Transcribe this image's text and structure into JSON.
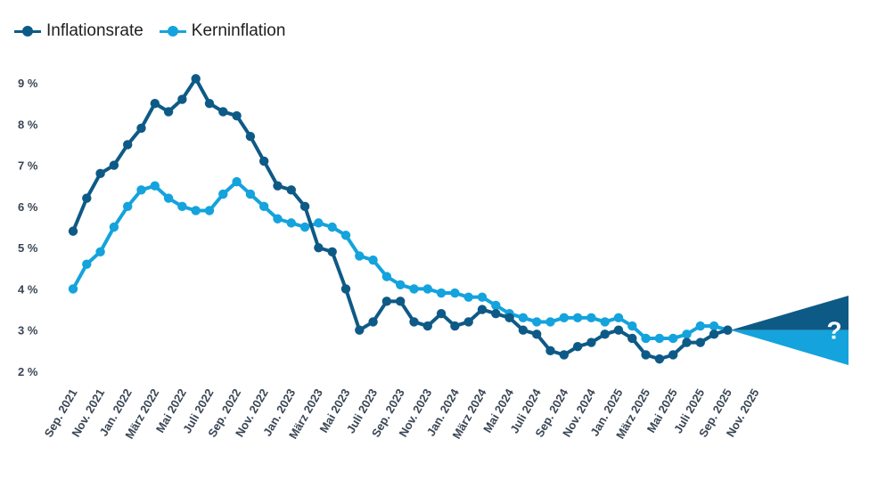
{
  "colors": {
    "inflation": "#0e5a86",
    "core": "#14a3dc",
    "tick_text": "#3a4654"
  },
  "legend": [
    {
      "label": "Inflationsrate",
      "color": "#0e5a86"
    },
    {
      "label": "Kerninflation",
      "color": "#14a3dc"
    }
  ],
  "chart_data": {
    "type": "line",
    "title": "",
    "xlabel": "",
    "ylabel": "",
    "ylim": [
      2,
      9
    ],
    "yticks": [
      {
        "value": 2,
        "label": "2 %"
      },
      {
        "value": 3,
        "label": "3 %"
      },
      {
        "value": 4,
        "label": "4 %"
      },
      {
        "value": 5,
        "label": "5 %"
      },
      {
        "value": 6,
        "label": "6 %"
      },
      {
        "value": 7,
        "label": "7 %"
      },
      {
        "value": 8,
        "label": "8 %"
      },
      {
        "value": 9,
        "label": "9 %"
      }
    ],
    "x_tick_labels": [
      "Sep. 2021",
      "Nov. 2021",
      "Jan. 2022",
      "März 2022",
      "Mai 2022",
      "Juli 2022",
      "Sep. 2022",
      "Nov. 2022",
      "Jan. 2023",
      "März 2023",
      "Mai 2023",
      "Juli 2023",
      "Sep. 2023",
      "Nov. 2023",
      "Jan. 2024",
      "März 2024",
      "Mai 2024",
      "Juli 2024",
      "Sep. 2024",
      "Nov. 2024",
      "Jan. 2025",
      "März 2025",
      "Mai 2025",
      "Juli 2025",
      "Sep. 2025",
      "Nov. 2025"
    ],
    "series": [
      {
        "name": "Inflationsrate",
        "values": [
          5.4,
          6.2,
          6.8,
          7.0,
          7.5,
          7.9,
          8.5,
          8.3,
          8.6,
          9.1,
          8.5,
          8.3,
          8.2,
          7.7,
          7.1,
          6.5,
          6.4,
          6.0,
          5.0,
          4.9,
          4.0,
          3.0,
          3.2,
          3.7,
          3.7,
          3.2,
          3.1,
          3.4,
          3.1,
          3.2,
          3.5,
          3.4,
          3.3,
          3.0,
          2.9,
          2.5,
          2.4,
          2.6,
          2.7,
          2.9,
          3.0,
          2.8,
          2.4,
          2.3,
          2.4,
          2.7,
          2.7,
          2.9,
          3.0
        ]
      },
      {
        "name": "Kerninflation",
        "values": [
          4.0,
          4.6,
          4.9,
          5.5,
          6.0,
          6.4,
          6.5,
          6.2,
          6.0,
          5.9,
          5.9,
          6.3,
          6.6,
          6.3,
          6.0,
          5.7,
          5.6,
          5.5,
          5.6,
          5.5,
          5.3,
          4.8,
          4.7,
          4.3,
          4.1,
          4.0,
          4.0,
          3.9,
          3.9,
          3.8,
          3.8,
          3.6,
          3.4,
          3.3,
          3.2,
          3.2,
          3.3,
          3.3,
          3.3,
          3.2,
          3.3,
          3.1,
          2.8,
          2.8,
          2.8,
          2.9,
          3.1,
          3.1,
          3.0
        ]
      }
    ],
    "forecast_marker": "?"
  }
}
